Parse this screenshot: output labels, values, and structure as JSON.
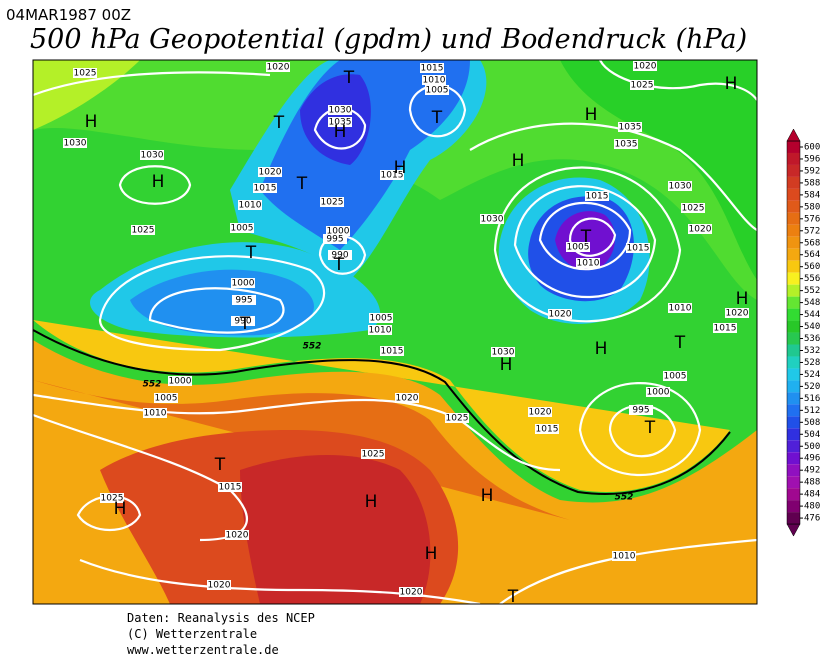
{
  "header": {
    "date": "04MAR1987 00Z",
    "title": "500 hPa Geopotential (gpdm) und Bodendruck (hPa)"
  },
  "isobar_labels": [
    "1025",
    "1020",
    "1015",
    "1010",
    "1005",
    "1020",
    "1025",
    "1030",
    "1030",
    "1030",
    "1035",
    "1035",
    "1035",
    "1020",
    "1015",
    "1010",
    "1025",
    "1015",
    "1030",
    "1025",
    "1020",
    "1015",
    "1025",
    "1005",
    "1000",
    "995",
    "990",
    "1030",
    "1005",
    "1010",
    "1015",
    "1000",
    "995",
    "990",
    "1005",
    "1010",
    "1015",
    "1020",
    "1010",
    "1015",
    "1020",
    "1030",
    "1005",
    "1000",
    "995",
    "1000",
    "1005",
    "1010",
    "1020",
    "1025",
    "1020",
    "1015",
    "1025",
    "1015",
    "1025",
    "1020",
    "1010",
    "1020",
    "1020"
  ],
  "contour_labels": [
    "552",
    "552",
    "552"
  ],
  "centers": [
    "H",
    "T",
    "T",
    "H",
    "T",
    "H",
    "H",
    "H",
    "T",
    "H",
    "H",
    "T",
    "T",
    "T",
    "T",
    "H",
    "H",
    "T",
    "H",
    "T",
    "T",
    "H",
    "H",
    "H",
    "H",
    "T"
  ],
  "colorbar": {
    "levels": [
      600,
      596,
      592,
      588,
      584,
      580,
      576,
      572,
      568,
      564,
      560,
      556,
      552,
      548,
      544,
      540,
      536,
      532,
      528,
      524,
      520,
      516,
      512,
      508,
      504,
      500,
      496,
      492,
      488,
      484,
      480,
      476
    ],
    "colors": [
      "#b4002d",
      "#c0182a",
      "#c82828",
      "#d23c22",
      "#dc4a1e",
      "#e05a1a",
      "#e66e14",
      "#ec8010",
      "#f09410",
      "#f4a810",
      "#f8c810",
      "#f8f020",
      "#b4f028",
      "#64e632",
      "#32dc32",
      "#28c828",
      "#28c850",
      "#20c890",
      "#20d0c0",
      "#20c8e8",
      "#20b0f0",
      "#2090f0",
      "#2070f0",
      "#2050e8",
      "#3030e0",
      "#5020d8",
      "#7010d0",
      "#9010c0",
      "#a010b0",
      "#a00890",
      "#800070",
      "#600050"
    ]
  },
  "footer": [
    "Daten: Reanalysis des NCEP",
    "(C) Wetterzentrale",
    "www.wetterzentrale.de"
  ]
}
